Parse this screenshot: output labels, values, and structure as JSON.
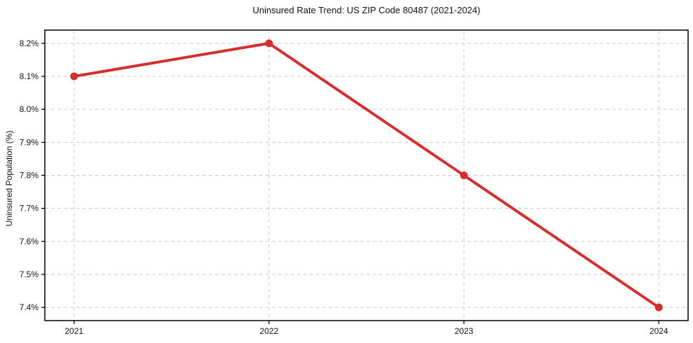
{
  "chart_data": {
    "type": "line",
    "title": "Uninsured Rate Trend: US ZIP Code 80487 (2021-2024)",
    "xlabel": "",
    "ylabel": "Uninsured Population (%)",
    "x": [
      2021,
      2022,
      2023,
      2024
    ],
    "xtick_labels": [
      "2021",
      "2022",
      "2023",
      "2024"
    ],
    "values": [
      8.1,
      8.2,
      7.8,
      7.4
    ],
    "ytick_values": [
      7.4,
      7.5,
      7.6,
      7.7,
      7.8,
      7.9,
      8.0,
      8.1,
      8.2
    ],
    "ytick_labels": [
      "7.4%",
      "7.5%",
      "7.6%",
      "7.7%",
      "7.8%",
      "7.9%",
      "8.0%",
      "8.1%",
      "8.2%"
    ],
    "xlim": [
      2020.85,
      2024.15
    ],
    "ylim": [
      7.36,
      8.24
    ],
    "grid": true,
    "legend": "none",
    "line_color": "#d32f2f",
    "marker_color": "#d32f2f",
    "grid_color": "#c9c9c9",
    "axis_color": "#000000",
    "text_color": "#111111"
  }
}
